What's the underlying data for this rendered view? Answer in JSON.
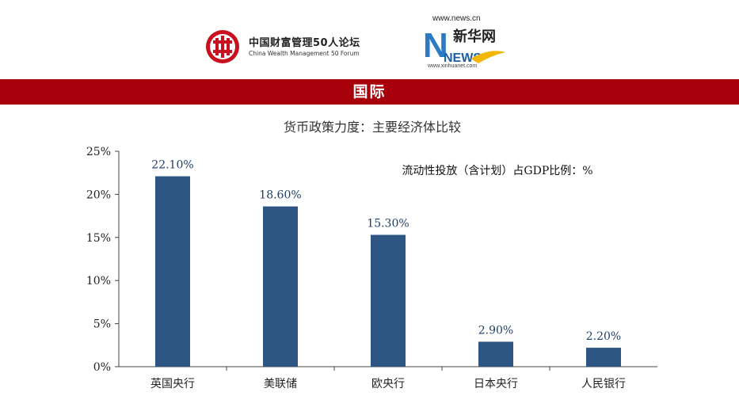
{
  "logos": {
    "left": {
      "name_cn": "中国财富管理50人论坛",
      "name_en": "China Wealth Management 50 Forum"
    },
    "right": {
      "url": "www.news.cn",
      "brand_cn": "新华网",
      "brand_en": "NEWS",
      "sub_url": "www.xinhuanet.com"
    }
  },
  "banner": {
    "title": "国际"
  },
  "colors": {
    "banner": "#a8000a",
    "bar": "#2e5684"
  },
  "chart_data": {
    "type": "bar",
    "title": "货币政策力度：主要经济体比较",
    "annotation": "流动性投放（含计划）占GDP比例：%",
    "categories": [
      "英国央行",
      "美联储",
      "欧央行",
      "日本央行",
      "人民银行"
    ],
    "values": [
      22.1,
      18.6,
      15.3,
      2.9,
      2.2
    ],
    "value_labels": [
      "22.10%",
      "18.60%",
      "15.30%",
      "2.90%",
      "2.20%"
    ],
    "ylim": [
      0,
      25
    ],
    "yticks": [
      "0%",
      "5%",
      "10%",
      "15%",
      "20%",
      "25%"
    ],
    "grid": false
  }
}
